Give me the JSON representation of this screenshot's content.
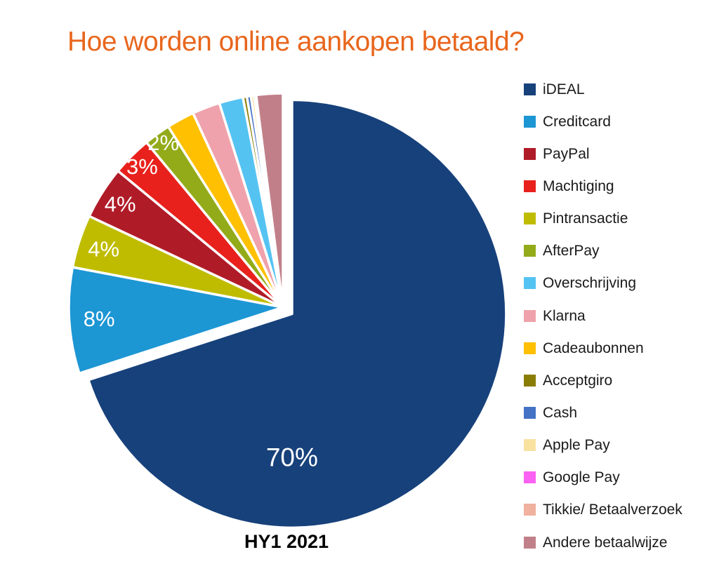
{
  "page": {
    "background": "#ffffff"
  },
  "chart_data": {
    "type": "pie",
    "title": "Hoe worden online aankopen betaald?",
    "title_color": "#E8661D",
    "period_label": "HY1 2021",
    "start_angle_deg": 0,
    "direction": "clockwise",
    "exploded_slice": "iDEAL",
    "label_text_color": "#FFFFFF",
    "slices": [
      {
        "name": "iDEAL",
        "value": 70,
        "label": "70%",
        "color": "#17417B",
        "label_angle_deg": 180,
        "label_radius_frac": 0.67
      },
      {
        "name": "Creditcard",
        "value": 8,
        "label": "8%",
        "color": "#1D96D4",
        "label_radius_frac": 0.86
      },
      {
        "name": "Pintransactie",
        "value": 4,
        "label": "4%",
        "color": "#BFBC00",
        "label_radius_frac": 0.88
      },
      {
        "name": "PayPal",
        "value": 4,
        "label": "4%",
        "color": "#B01B28",
        "label_radius_frac": 0.9
      },
      {
        "name": "Machtiging",
        "value": 3,
        "label": "3%",
        "color": "#E8211C",
        "label_radius_frac": 0.93
      },
      {
        "name": "AfterPay",
        "value": 2,
        "label": "2%",
        "color": "#93AB19",
        "label_radius_frac": 0.95
      },
      {
        "name": "Cadeaubonnen",
        "value": 2.1,
        "label": "",
        "color": "#FEC001"
      },
      {
        "name": "Klarna",
        "value": 2.1,
        "label": "",
        "color": "#EFA2AB"
      },
      {
        "name": "Overschrijving",
        "value": 1.8,
        "label": "",
        "color": "#55C3F2"
      },
      {
        "name": "Acceptgiro",
        "value": 0.3,
        "label": "",
        "color": "#8A7D05"
      },
      {
        "name": "Cash",
        "value": 0.3,
        "label": "",
        "color": "#4472C4"
      },
      {
        "name": "Apple Pay",
        "value": 0.25,
        "label": "",
        "color": "#F9E2A0"
      },
      {
        "name": "Google Pay",
        "value": 0.05,
        "label": "",
        "color": "#FB61F2"
      },
      {
        "name": "Tikkie/ Betaalverzoek",
        "value": 0.1,
        "label": "",
        "color": "#F0B19E"
      },
      {
        "name": "Andere betaalwijze",
        "value": 2.0,
        "label": "",
        "color": "#C18089"
      }
    ],
    "legend_order": [
      "iDEAL",
      "Creditcard",
      "PayPal",
      "Machtiging",
      "Pintransactie",
      "AfterPay",
      "Overschrijving",
      "Klarna",
      "Cadeaubonnen",
      "Acceptgiro",
      "Cash",
      "Apple Pay",
      "Google Pay",
      "Tikkie/ Betaalverzoek",
      "Andere betaalwijze"
    ]
  }
}
